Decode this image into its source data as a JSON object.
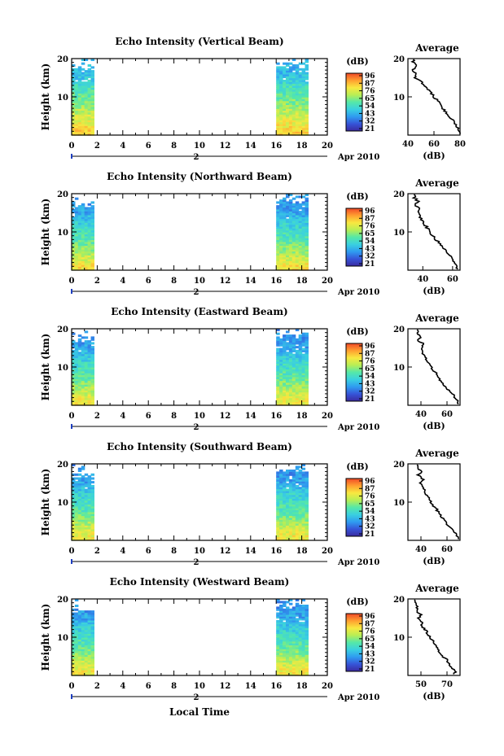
{
  "figure": {
    "x_label": "Local Time",
    "date_label": "Apr 2010",
    "day_label": "2",
    "y_label": "Height (km)",
    "colorbar_unit": "(dB)",
    "colorbar_ticks": [
      "96",
      "87",
      "76",
      "65",
      "54",
      "43",
      "32",
      "21"
    ],
    "colorscale": [
      "#3a2aa0",
      "#3655d8",
      "#2f9cf0",
      "#3ad0e0",
      "#55e8a8",
      "#b8ee55",
      "#f8e840",
      "#ffa030",
      "#f04828"
    ],
    "profile_title": "Average",
    "profile_unit": "(dB)"
  },
  "chart_data": [
    {
      "type": "heatmap",
      "title": "Echo Intensity (Vertical Beam)",
      "xlabel": "Local Time",
      "ylabel": "Height (km)",
      "xlim": [
        0,
        20
      ],
      "ylim": [
        0,
        20
      ],
      "x_ticks": [
        0,
        2,
        4,
        6,
        8,
        10,
        12,
        14,
        16,
        18,
        20
      ],
      "y_ticks": [
        10,
        20
      ],
      "colorbar": {
        "unit": "dB",
        "ticks": [
          96,
          87,
          76,
          65,
          54,
          43,
          32,
          21
        ]
      },
      "data_coverage_hours": [
        [
          0,
          1.7
        ],
        [
          16,
          18.5
        ]
      ],
      "intensity_by_height": {
        "heights_km": [
          1,
          3,
          5,
          7,
          9,
          11,
          13,
          15,
          17,
          19
        ],
        "db": [
          80,
          76,
          72,
          67,
          62,
          58,
          54,
          48,
          44,
          45
        ]
      },
      "profile": {
        "title": "Average",
        "xlabel": "(dB)",
        "xlim": [
          40,
          80
        ],
        "x_ticks": [
          40,
          60,
          80
        ],
        "y_ticks": [
          10,
          20
        ],
        "heights_km": [
          1,
          2,
          3,
          4,
          5,
          6,
          7,
          8,
          9,
          10,
          11,
          12,
          13,
          14,
          15,
          16,
          17,
          18,
          19,
          20
        ],
        "db": [
          80,
          78,
          76,
          74,
          71,
          69,
          67,
          65,
          63,
          60,
          58,
          55,
          52,
          50,
          45,
          47,
          43,
          47,
          44,
          45
        ]
      }
    },
    {
      "type": "heatmap",
      "title": "Echo Intensity (Northward Beam)",
      "xlabel": "Local Time",
      "ylabel": "Height (km)",
      "xlim": [
        0,
        20
      ],
      "ylim": [
        0,
        20
      ],
      "x_ticks": [
        0,
        2,
        4,
        6,
        8,
        10,
        12,
        14,
        16,
        18,
        20
      ],
      "y_ticks": [
        10,
        20
      ],
      "colorbar": {
        "unit": "dB",
        "ticks": [
          96,
          87,
          76,
          65,
          54,
          43,
          32,
          21
        ]
      },
      "data_coverage_hours": [
        [
          0,
          1.7
        ],
        [
          16,
          18.5
        ]
      ],
      "intensity_by_height": {
        "heights_km": [
          1,
          3,
          5,
          7,
          9,
          11,
          13,
          15,
          17,
          19
        ],
        "db": [
          78,
          72,
          66,
          60,
          56,
          52,
          48,
          42,
          40,
          38
        ]
      },
      "profile": {
        "title": "Average",
        "xlabel": "(dB)",
        "xlim": [
          30,
          65
        ],
        "x_ticks": [
          40,
          60
        ],
        "y_ticks": [
          10,
          20
        ],
        "heights_km": [
          1,
          2,
          3,
          4,
          5,
          6,
          7,
          8,
          9,
          10,
          11,
          12,
          13,
          14,
          15,
          16,
          17,
          18,
          19,
          20
        ],
        "db": [
          63,
          62,
          60,
          58,
          55,
          53,
          51,
          49,
          47,
          45,
          43,
          41,
          40,
          38,
          37,
          38,
          35,
          37,
          34,
          35
        ]
      }
    },
    {
      "type": "heatmap",
      "title": "Echo Intensity (Eastward Beam)",
      "xlabel": "Local Time",
      "ylabel": "Height (km)",
      "xlim": [
        0,
        20
      ],
      "ylim": [
        0,
        20
      ],
      "x_ticks": [
        0,
        2,
        4,
        6,
        8,
        10,
        12,
        14,
        16,
        18,
        20
      ],
      "y_ticks": [
        10,
        20
      ],
      "colorbar": {
        "unit": "dB",
        "ticks": [
          96,
          87,
          76,
          65,
          54,
          43,
          32,
          21
        ]
      },
      "data_coverage_hours": [
        [
          0,
          1.7
        ],
        [
          16,
          18.5
        ]
      ],
      "intensity_by_height": {
        "heights_km": [
          1,
          3,
          5,
          7,
          9,
          11,
          13,
          15,
          17,
          19
        ],
        "db": [
          76,
          72,
          66,
          60,
          56,
          52,
          48,
          42,
          40,
          38
        ]
      },
      "profile": {
        "title": "Average",
        "xlabel": "(dB)",
        "xlim": [
          30,
          70
        ],
        "x_ticks": [
          40,
          60
        ],
        "y_ticks": [
          10,
          20
        ],
        "heights_km": [
          1,
          2,
          3,
          4,
          5,
          6,
          7,
          8,
          9,
          10,
          11,
          12,
          13,
          14,
          15,
          16,
          17,
          18,
          19,
          20
        ],
        "db": [
          68,
          66,
          64,
          61,
          58,
          56,
          54,
          52,
          50,
          48,
          46,
          44,
          43,
          41,
          40,
          42,
          38,
          40,
          37,
          38
        ]
      }
    },
    {
      "type": "heatmap",
      "title": "Echo Intensity (Southward Beam)",
      "xlabel": "Local Time",
      "ylabel": "Height (km)",
      "xlim": [
        0,
        20
      ],
      "ylim": [
        0,
        20
      ],
      "x_ticks": [
        0,
        2,
        4,
        6,
        8,
        10,
        12,
        14,
        16,
        18,
        20
      ],
      "y_ticks": [
        10,
        20
      ],
      "colorbar": {
        "unit": "dB",
        "ticks": [
          96,
          87,
          76,
          65,
          54,
          43,
          32,
          21
        ]
      },
      "data_coverage_hours": [
        [
          0,
          1.7
        ],
        [
          16,
          18.5
        ]
      ],
      "intensity_by_height": {
        "heights_km": [
          1,
          3,
          5,
          7,
          9,
          11,
          13,
          15,
          17,
          19
        ],
        "db": [
          76,
          72,
          66,
          60,
          56,
          52,
          48,
          42,
          40,
          38
        ]
      },
      "profile": {
        "title": "Average",
        "xlabel": "(dB)",
        "xlim": [
          30,
          70
        ],
        "x_ticks": [
          40,
          60
        ],
        "y_ticks": [
          10,
          20
        ],
        "heights_km": [
          1,
          2,
          3,
          4,
          5,
          6,
          7,
          8,
          9,
          10,
          11,
          12,
          13,
          14,
          15,
          16,
          17,
          18,
          19,
          20
        ],
        "db": [
          68,
          66,
          64,
          61,
          58,
          56,
          54,
          52,
          50,
          48,
          46,
          44,
          43,
          41,
          40,
          42,
          38,
          40,
          37,
          38
        ]
      }
    },
    {
      "type": "heatmap",
      "title": "Echo Intensity (Westward Beam)",
      "xlabel": "Local Time",
      "ylabel": "Height (km)",
      "xlim": [
        0,
        20
      ],
      "ylim": [
        0,
        20
      ],
      "x_ticks": [
        0,
        2,
        4,
        6,
        8,
        10,
        12,
        14,
        16,
        18,
        20
      ],
      "y_ticks": [
        10,
        20
      ],
      "colorbar": {
        "unit": "dB",
        "ticks": [
          96,
          87,
          76,
          65,
          54,
          43,
          32,
          21
        ]
      },
      "data_coverage_hours": [
        [
          0,
          1.7
        ],
        [
          16,
          18.5
        ]
      ],
      "intensity_by_height": {
        "heights_km": [
          1,
          3,
          5,
          7,
          9,
          11,
          13,
          15,
          17,
          19
        ],
        "db": [
          76,
          72,
          66,
          60,
          56,
          52,
          48,
          42,
          40,
          38
        ]
      },
      "profile": {
        "title": "Average",
        "xlabel": "(dB)",
        "xlim": [
          40,
          80
        ],
        "x_ticks": [
          50,
          70
        ],
        "y_ticks": [
          10,
          20
        ],
        "heights_km": [
          1,
          2,
          3,
          4,
          5,
          6,
          7,
          8,
          9,
          10,
          11,
          12,
          13,
          14,
          15,
          16,
          17,
          18,
          19,
          20
        ],
        "db": [
          76,
          74,
          72,
          70,
          67,
          65,
          63,
          61,
          59,
          57,
          55,
          53,
          51,
          50,
          48,
          50,
          46,
          48,
          45,
          46
        ]
      }
    }
  ]
}
